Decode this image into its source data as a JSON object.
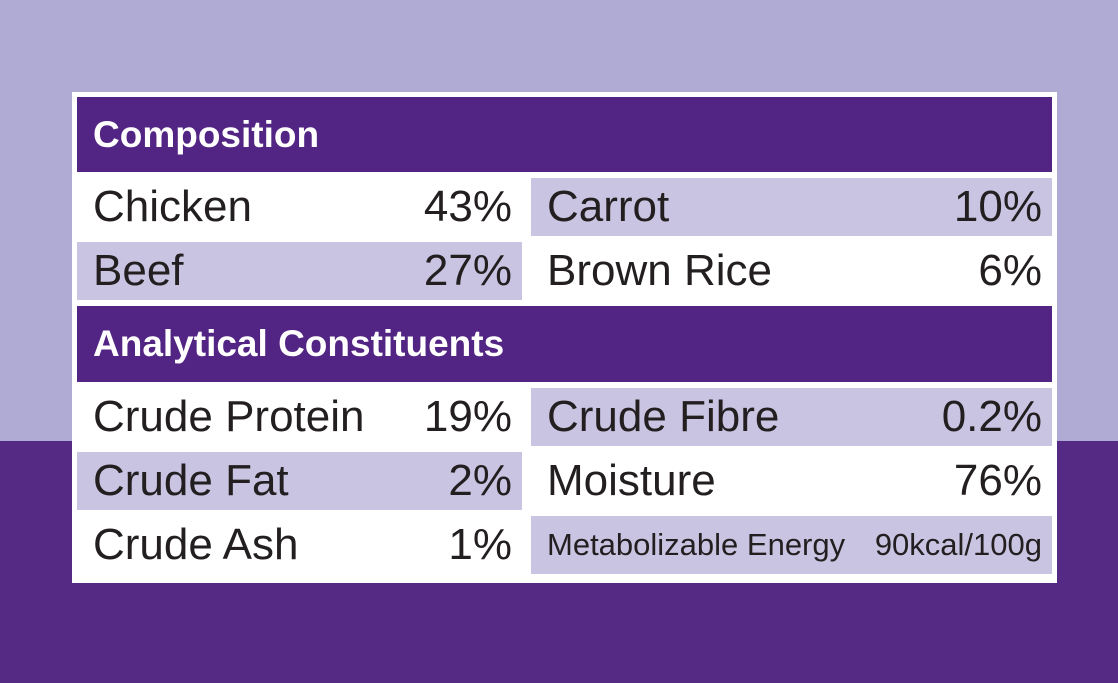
{
  "label": {
    "sections": [
      {
        "header": "Composition",
        "rows": [
          {
            "left": {
              "label": "Chicken",
              "value": "43%"
            },
            "right": {
              "label": "Carrot",
              "value": "10%"
            }
          },
          {
            "left": {
              "label": "Beef",
              "value": "27%"
            },
            "right": {
              "label": "Brown Rice",
              "value": "6%"
            }
          }
        ]
      },
      {
        "header": "Analytical Constituents",
        "rows": [
          {
            "left": {
              "label": "Crude Protein",
              "value": "19%"
            },
            "right": {
              "label": "Crude Fibre",
              "value": "0.2%"
            }
          },
          {
            "left": {
              "label": "Crude Fat",
              "value": "2%"
            },
            "right": {
              "label": "Moisture",
              "value": "76%"
            }
          },
          {
            "left": {
              "label": "Crude Ash",
              "value": "1%"
            },
            "right": {
              "label": "Metabolizable Energy",
              "value": "90kcal/100g"
            }
          }
        ]
      }
    ]
  },
  "colors": {
    "bg_top": "#b0abd4",
    "bg_bottom": "#542a85",
    "band_bg": "#522483",
    "band_text": "#ffffff",
    "cell_lavender": "#c9c4e1",
    "panel_bg": "#ffffff",
    "text": "#231f20"
  }
}
